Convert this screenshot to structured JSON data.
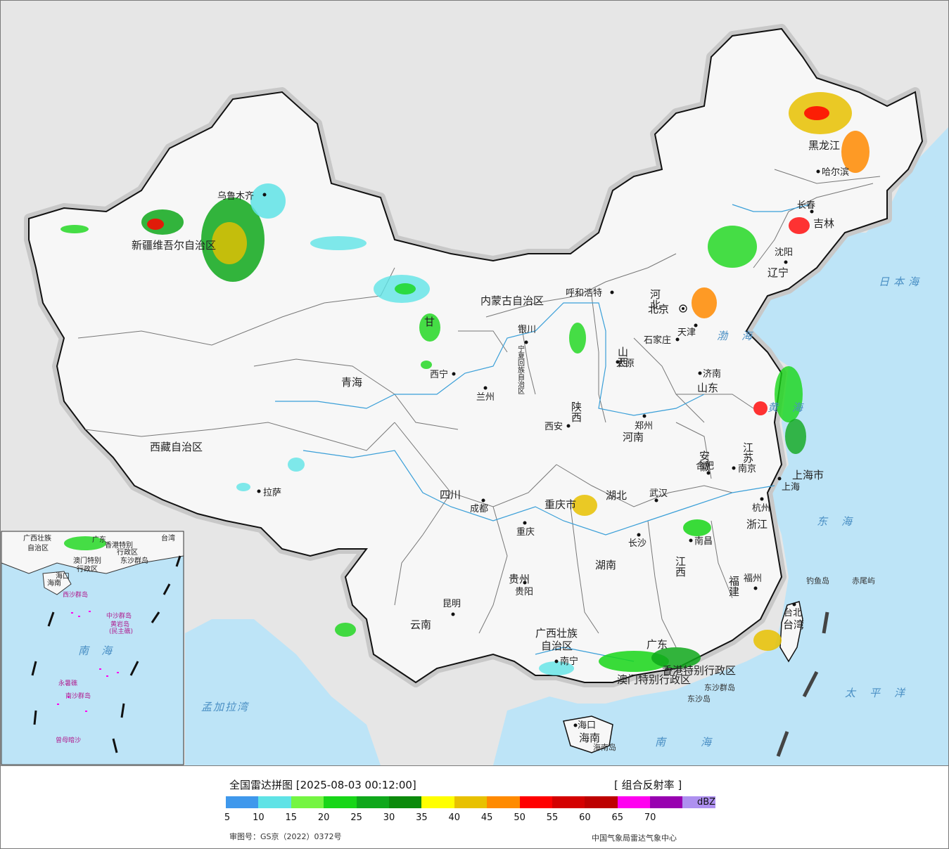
{
  "map": {
    "cities": [
      {
        "name": "乌鲁木齐",
        "id": "urumqi"
      },
      {
        "name": "拉萨",
        "id": "lhasa"
      },
      {
        "name": "西宁",
        "id": "xining"
      },
      {
        "name": "兰州",
        "id": "lanzhou"
      },
      {
        "name": "银川",
        "id": "yinchuan"
      },
      {
        "name": "呼和浩特",
        "id": "hohhot"
      },
      {
        "name": "北京",
        "id": "beijing"
      },
      {
        "name": "天津",
        "id": "tianjin"
      },
      {
        "name": "石家庄",
        "id": "shijiazhuang"
      },
      {
        "name": "太原",
        "id": "taiyuan"
      },
      {
        "name": "济南",
        "id": "jinan"
      },
      {
        "name": "郑州",
        "id": "zhengzhou"
      },
      {
        "name": "西安",
        "id": "xian"
      },
      {
        "name": "成都",
        "id": "chengdu"
      },
      {
        "name": "重庆",
        "id": "chongqing"
      },
      {
        "name": "武汉",
        "id": "wuhan"
      },
      {
        "name": "合肥",
        "id": "hefei"
      },
      {
        "name": "南京",
        "id": "nanjing"
      },
      {
        "name": "上海",
        "id": "shanghai"
      },
      {
        "name": "杭州",
        "id": "hangzhou"
      },
      {
        "name": "南昌",
        "id": "nanchang"
      },
      {
        "name": "长沙",
        "id": "changsha"
      },
      {
        "name": "贵阳",
        "id": "guiyang"
      },
      {
        "name": "昆明",
        "id": "kunming"
      },
      {
        "name": "南宁",
        "id": "nanning"
      },
      {
        "name": "福州",
        "id": "fuzhou"
      },
      {
        "name": "台北",
        "id": "taipei"
      },
      {
        "name": "海口",
        "id": "haikou"
      },
      {
        "name": "沈阳",
        "id": "shenyang"
      },
      {
        "name": "长春",
        "id": "changchun"
      },
      {
        "name": "哈尔滨",
        "id": "harbin"
      }
    ],
    "provinces": [
      {
        "name": "新疆维吾尔自治区",
        "id": "xinjiang"
      },
      {
        "name": "西藏自治区",
        "id": "xizang"
      },
      {
        "name": "青海",
        "id": "qinghai"
      },
      {
        "name": "甘",
        "id": "gansu"
      },
      {
        "name": "四川",
        "id": "sichuan"
      },
      {
        "name": "云南",
        "id": "yunnan"
      },
      {
        "name": "贵州",
        "id": "guizhou"
      },
      {
        "name": "重庆市",
        "id": "chongqing-muni"
      },
      {
        "name": "广西壮族",
        "id": "guangxi-1"
      },
      {
        "name": "自治区",
        "id": "guangxi-2"
      },
      {
        "name": "广东",
        "id": "guangdong"
      },
      {
        "name": "湖南",
        "id": "hunan"
      },
      {
        "name": "湖北",
        "id": "hubei"
      },
      {
        "name": "江西",
        "id": "jiangxi"
      },
      {
        "name": "福建",
        "id": "fujian"
      },
      {
        "name": "浙江",
        "id": "zhejiang"
      },
      {
        "name": "上海市",
        "id": "shanghai-muni"
      },
      {
        "name": "江苏",
        "id": "jiangsu"
      },
      {
        "name": "安徽",
        "id": "anhui"
      },
      {
        "name": "河南",
        "id": "henan"
      },
      {
        "name": "山东",
        "id": "shandong"
      },
      {
        "name": "陕西",
        "id": "shaanxi"
      },
      {
        "name": "山西",
        "id": "shanxi"
      },
      {
        "name": "河北",
        "id": "hebei"
      },
      {
        "name": "内蒙古自治区",
        "id": "neimenggu"
      },
      {
        "name": "辽宁",
        "id": "liaoning"
      },
      {
        "name": "吉林",
        "id": "jilin"
      },
      {
        "name": "黑龙江",
        "id": "heilongjiang"
      },
      {
        "name": "宁夏回族自治区",
        "id": "ningxia"
      },
      {
        "name": "台湾",
        "id": "taiwan"
      },
      {
        "name": "海南",
        "id": "hainan"
      },
      {
        "name": "香港特别行政区",
        "id": "hongkong"
      },
      {
        "name": "澳门特别行政区",
        "id": "macau"
      },
      {
        "name": "天津",
        "id": "tianjin-muni"
      }
    ],
    "seas": [
      {
        "name": "日本海",
        "id": "sea-japan"
      },
      {
        "name": "渤海",
        "id": "bohai"
      },
      {
        "name": "黄海",
        "id": "huanghai"
      },
      {
        "name": "东海",
        "id": "donghai"
      },
      {
        "name": "太平洋",
        "id": "pacific"
      },
      {
        "name": "南海",
        "id": "nanhai"
      },
      {
        "name": "孟加拉湾",
        "id": "bengal"
      }
    ],
    "islands": [
      {
        "name": "钓鱼岛",
        "id": "diaoyu"
      },
      {
        "name": "赤尾屿",
        "id": "chiwei"
      },
      {
        "name": "东沙群岛",
        "id": "dongsha"
      },
      {
        "name": "东沙岛",
        "id": "dongsha-isl"
      },
      {
        "name": "海南岛",
        "id": "hainan-isl"
      }
    ],
    "inset": {
      "labels": [
        "广西壮族",
        "自治区",
        "广东",
        "台湾",
        "香港特别",
        "行政区",
        "澳门特别",
        "行政区",
        "东沙群岛",
        "海口",
        "海南",
        "西沙群岛",
        "中沙群岛",
        "黄岩岛",
        "(民主礁)",
        "南海",
        "永暑礁",
        "南沙群岛",
        "曾母暗沙"
      ]
    }
  },
  "legend": {
    "title": "全国雷达拼图 [2025-08-03 00:12:00]",
    "product": "[ 组合反射率 ]",
    "unit": "dBZ",
    "ticks": [
      "5",
      "10",
      "15",
      "20",
      "25",
      "30",
      "35",
      "40",
      "45",
      "50",
      "55",
      "60",
      "65",
      "70"
    ],
    "colors": [
      "#3f98ec",
      "#5fe3e6",
      "#74f542",
      "#18d618",
      "#0fa81b",
      "#0b8a0b",
      "#ffff00",
      "#e8c100",
      "#ff8a00",
      "#ff0000",
      "#d40000",
      "#bd0000",
      "#ff00f0",
      "#9800b0",
      "#ae90f0"
    ],
    "approval": "审图号：GS京（2022）0372号",
    "source": "中国气象局雷达气象中心"
  }
}
